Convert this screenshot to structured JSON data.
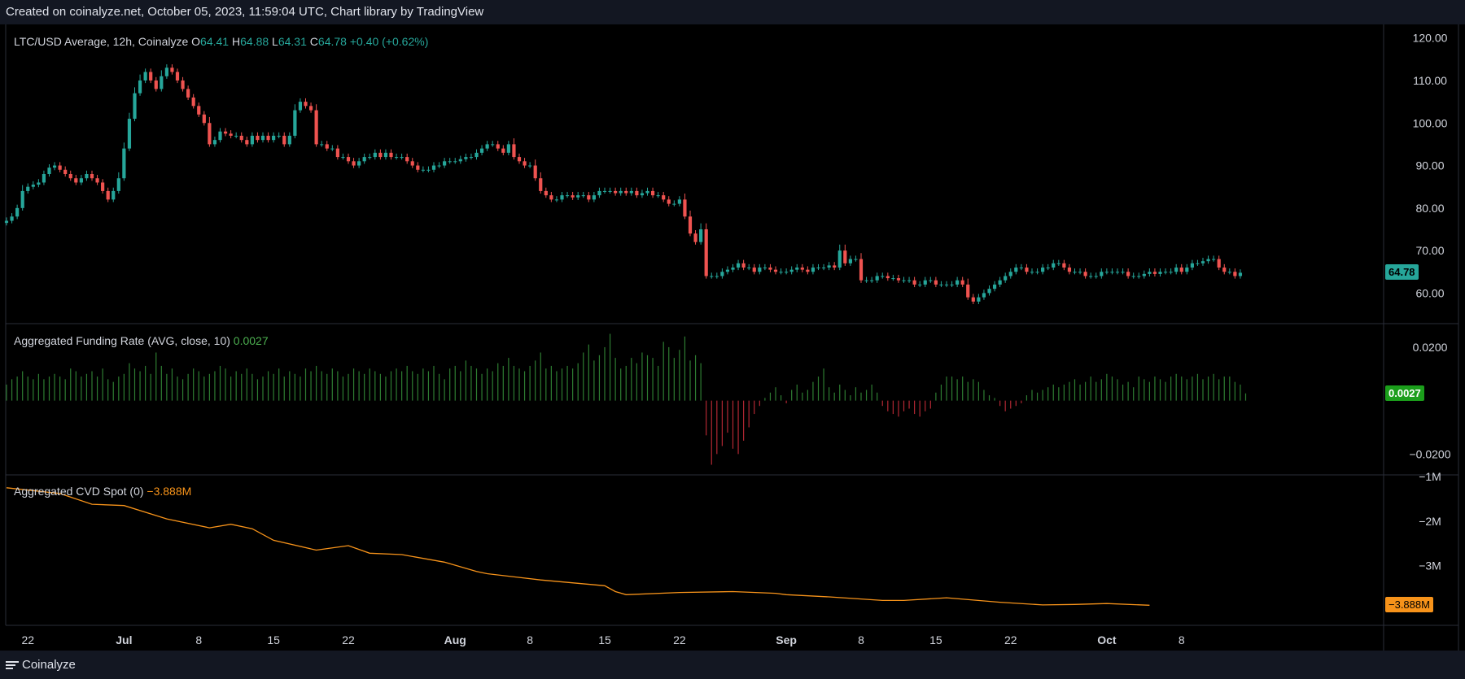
{
  "header": {
    "text": "Created on coinalyze.net, October 05, 2023, 11:59:04 UTC, Chart library by TradingView"
  },
  "footer": {
    "brand": "Coinalyze",
    "icon": "menu-icon"
  },
  "legends": {
    "price": {
      "name": "LTC/USD Average, 12h, Coinalyze",
      "o_label": "O",
      "o": "64.41",
      "h_label": "H",
      "h": "64.88",
      "l_label": "L",
      "l": "64.31",
      "c_label": "C",
      "c": "64.78",
      "change": "+0.40 (+0.62%)"
    },
    "funding": {
      "name": "Aggregated Funding Rate (AVG, close, 10)",
      "value": "0.0027"
    },
    "cvd": {
      "name": "Aggregated CVD Spot (0)",
      "value": "−3.888M"
    }
  },
  "tags": {
    "price": "64.78",
    "funding": "0.0027",
    "cvd": "−3.888M"
  },
  "colors": {
    "up": "#26a69a",
    "down": "#ef5350",
    "funding_pos": "#2e7d32",
    "funding_neg": "#b22833",
    "cvd": "#f7931a",
    "price_tag": "#26a69a",
    "funding_tag": "#1b9e1b",
    "cvd_tag": "#f7931a"
  },
  "chart_data": [
    {
      "type": "candlestick",
      "title": "LTC/USD Average, 12h, Coinalyze",
      "interval": "12h",
      "ylim": [
        53,
        123
      ],
      "y_ticks": [
        "60.00",
        "70.00",
        "80.00",
        "90.00",
        "100.00",
        "110.00",
        "120.00"
      ],
      "x_ticks": [
        "22",
        "Jul",
        "8",
        "15",
        "22",
        "Aug",
        "8",
        "15",
        "22",
        "Sep",
        "8",
        "15",
        "22",
        "Oct",
        "8"
      ],
      "x_tick_dates": [
        "2023-06-22",
        "2023-07-01",
        "2023-07-08",
        "2023-07-15",
        "2023-07-22",
        "2023-08-01",
        "2023-08-08",
        "2023-08-15",
        "2023-08-22",
        "2023-09-01",
        "2023-09-08",
        "2023-09-15",
        "2023-09-22",
        "2023-10-01",
        "2023-10-08"
      ],
      "x_range": [
        "2023-06-20",
        "2023-10-10"
      ],
      "first_candle": "2023-06-20",
      "candle_period_days": 0.5,
      "series_close": [
        77,
        78,
        80,
        84,
        85,
        85.5,
        86,
        88,
        89.5,
        90,
        89,
        88,
        87,
        86,
        87,
        88,
        87,
        86,
        84,
        82,
        84,
        87,
        94,
        101,
        107,
        110,
        112,
        110,
        108,
        111,
        113,
        112,
        110,
        108,
        106,
        104,
        102,
        100,
        95,
        96,
        98,
        97.5,
        97,
        97,
        96,
        95,
        97,
        96,
        97,
        96,
        97,
        97,
        95,
        97,
        103,
        105,
        104,
        103,
        95,
        95,
        94,
        94,
        92,
        92,
        91,
        90,
        91,
        92,
        92,
        93,
        92,
        93,
        92,
        92,
        92,
        91,
        90,
        89,
        89,
        89,
        90,
        90,
        91,
        91,
        91,
        91.5,
        92,
        92,
        93,
        94,
        95,
        95,
        94,
        93,
        95,
        92,
        91,
        90,
        90,
        87,
        84,
        83,
        82,
        82,
        83,
        83,
        82.5,
        83,
        83,
        82,
        83,
        84,
        84,
        84,
        83.5,
        84,
        83.5,
        84,
        83,
        83.5,
        84,
        83,
        83,
        82,
        81,
        81,
        82,
        78,
        74,
        72,
        75,
        64,
        64,
        64,
        65,
        65.5,
        66,
        67,
        66,
        66,
        65,
        66,
        66,
        65.5,
        65,
        65,
        65,
        65.5,
        66,
        65.5,
        65,
        66,
        66,
        66,
        66.5,
        66,
        70,
        67,
        68,
        68,
        63,
        63,
        63,
        64,
        64,
        63.5,
        63.5,
        63,
        63,
        63,
        62,
        62,
        63,
        63,
        62,
        62,
        62,
        62,
        63,
        62,
        59,
        58,
        59,
        60,
        61,
        62,
        63,
        64,
        65,
        66,
        66,
        65,
        65,
        65,
        66,
        66,
        67,
        67,
        66,
        65,
        65,
        65,
        64,
        64,
        64,
        65,
        65,
        65,
        65,
        65,
        64,
        64,
        64,
        64.5,
        65,
        64.5,
        65,
        65,
        65,
        66,
        65,
        66,
        67,
        67,
        67.5,
        68,
        68,
        66,
        65,
        65,
        64,
        64.78
      ],
      "last": {
        "o": 64.41,
        "h": 64.88,
        "l": 64.31,
        "c": 64.78
      }
    },
    {
      "type": "bar",
      "title": "Aggregated Funding Rate (AVG, close, 10)",
      "ylim": [
        -0.0275,
        0.0285
      ],
      "y_ticks": [
        "0.0200",
        "−0.0200"
      ],
      "first_bar": "2023-06-20",
      "bar_period_days": 0.5,
      "values": [
        0.006,
        0.008,
        0.009,
        0.011,
        0.009,
        0.008,
        0.01,
        0.008,
        0.009,
        0.01,
        0.009,
        0.008,
        0.012,
        0.011,
        0.009,
        0.01,
        0.011,
        0.009,
        0.012,
        0.008,
        0.007,
        0.009,
        0.01,
        0.014,
        0.012,
        0.011,
        0.013,
        0.01,
        0.018,
        0.013,
        0.01,
        0.012,
        0.009,
        0.008,
        0.01,
        0.012,
        0.011,
        0.009,
        0.01,
        0.011,
        0.013,
        0.012,
        0.009,
        0.011,
        0.01,
        0.012,
        0.01,
        0.008,
        0.009,
        0.011,
        0.01,
        0.012,
        0.009,
        0.011,
        0.01,
        0.009,
        0.012,
        0.011,
        0.013,
        0.011,
        0.01,
        0.012,
        0.011,
        0.009,
        0.01,
        0.012,
        0.011,
        0.01,
        0.012,
        0.011,
        0.01,
        0.009,
        0.011,
        0.012,
        0.011,
        0.013,
        0.011,
        0.01,
        0.012,
        0.011,
        0.013,
        0.01,
        0.008,
        0.012,
        0.013,
        0.011,
        0.015,
        0.013,
        0.012,
        0.01,
        0.012,
        0.011,
        0.014,
        0.013,
        0.016,
        0.013,
        0.012,
        0.011,
        0.013,
        0.015,
        0.018,
        0.012,
        0.013,
        0.011,
        0.012,
        0.013,
        0.012,
        0.014,
        0.018,
        0.021,
        0.015,
        0.017,
        0.02,
        0.025,
        0.016,
        0.012,
        0.013,
        0.016,
        0.014,
        0.018,
        0.017,
        0.016,
        0.013,
        0.022,
        0.02,
        0.016,
        0.019,
        0.024,
        0.015,
        0.017,
        0.014,
        -0.013,
        -0.024,
        -0.02,
        -0.017,
        -0.012,
        -0.018,
        -0.02,
        -0.015,
        -0.01,
        -0.005,
        -0.002,
        0.001,
        0.003,
        0.005,
        0.002,
        -0.001,
        0.004,
        0.006,
        0.003,
        0.004,
        0.007,
        0.009,
        0.012,
        0.005,
        0.003,
        0.006,
        0.004,
        0.002,
        0.005,
        0.003,
        0.004,
        0.006,
        0.003,
        -0.002,
        -0.004,
        -0.005,
        -0.006,
        -0.004,
        -0.003,
        -0.005,
        -0.006,
        -0.004,
        -0.003,
        0.003,
        0.006,
        0.009,
        0.009,
        0.008,
        0.009,
        0.007,
        0.008,
        0.007,
        0.004,
        0.002,
        0.001,
        -0.002,
        -0.004,
        -0.003,
        -0.002,
        -0.001,
        0.002,
        0.004,
        0.003,
        0.004,
        0.005,
        0.006,
        0.005,
        0.006,
        0.007,
        0.008,
        0.006,
        0.007,
        0.009,
        0.007,
        0.008,
        0.01,
        0.009,
        0.008,
        0.006,
        0.007,
        0.005,
        0.009,
        0.008,
        0.007,
        0.009,
        0.008,
        0.007,
        0.009,
        0.01,
        0.009,
        0.008,
        0.009,
        0.01,
        0.008,
        0.009,
        0.01,
        0.008,
        0.009,
        0.009,
        0.007,
        0.006,
        0.0027
      ],
      "last": 0.0027
    },
    {
      "type": "line",
      "title": "Aggregated CVD Spot (0)",
      "unit": "M",
      "ylim": [
        -4.32,
        -0.98
      ],
      "y_ticks": [
        "−1M",
        "−2M",
        "−3M"
      ],
      "x": [
        "2023-06-20",
        "2023-06-25",
        "2023-06-28",
        "2023-07-01",
        "2023-07-05",
        "2023-07-09",
        "2023-07-11",
        "2023-07-13",
        "2023-07-15",
        "2023-07-19",
        "2023-07-22",
        "2023-07-24",
        "2023-07-27",
        "2023-07-31",
        "2023-08-03",
        "2023-08-04",
        "2023-08-09",
        "2023-08-15",
        "2023-08-16",
        "2023-08-17",
        "2023-08-22",
        "2023-08-27",
        "2023-08-31",
        "2023-09-01",
        "2023-09-05",
        "2023-09-10",
        "2023-09-12",
        "2023-09-16",
        "2023-09-21",
        "2023-09-25",
        "2023-09-28",
        "2023-10-01",
        "2023-10-05"
      ],
      "y": [
        -1.25,
        -1.38,
        -1.62,
        -1.65,
        -1.95,
        -2.15,
        -2.07,
        -2.17,
        -2.43,
        -2.65,
        -2.55,
        -2.72,
        -2.75,
        -2.92,
        -3.13,
        -3.18,
        -3.32,
        -3.45,
        -3.58,
        -3.65,
        -3.6,
        -3.58,
        -3.62,
        -3.65,
        -3.7,
        -3.78,
        -3.78,
        -3.72,
        -3.82,
        -3.88,
        -3.87,
        -3.85,
        -3.888
      ],
      "last": -3.888
    }
  ]
}
